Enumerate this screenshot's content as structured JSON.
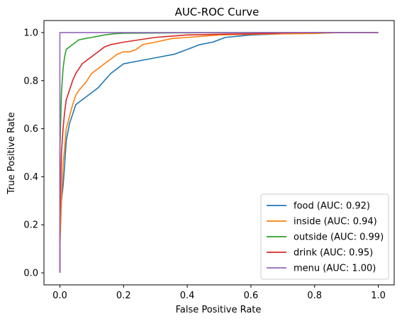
{
  "chart_data": {
    "type": "line",
    "title": "AUC-ROC Curve",
    "xlabel": "False Positive Rate",
    "ylabel": "True Positive Rate",
    "xlim": [
      -0.05,
      1.05
    ],
    "ylim": [
      -0.05,
      1.05
    ],
    "xticks": [
      0.0,
      0.2,
      0.4,
      0.6,
      0.8,
      1.0
    ],
    "yticks": [
      0.0,
      0.2,
      0.4,
      0.6,
      0.8,
      1.0
    ],
    "xtick_labels": [
      "0.0",
      "0.2",
      "0.4",
      "0.6",
      "0.8",
      "1.0"
    ],
    "ytick_labels": [
      "0.0",
      "0.2",
      "0.4",
      "0.6",
      "0.8",
      "1.0"
    ],
    "grid": false,
    "legend_position": "lower-right",
    "series": [
      {
        "name": "food (AUC: 0.92)",
        "color": "#1f77b4",
        "x": [
          0.0,
          0.0,
          0.005,
          0.01,
          0.015,
          0.02,
          0.03,
          0.04,
          0.05,
          0.06,
          0.07,
          0.08,
          0.1,
          0.12,
          0.14,
          0.16,
          0.18,
          0.2,
          0.24,
          0.28,
          0.32,
          0.36,
          0.4,
          0.44,
          0.48,
          0.52,
          0.56,
          0.6,
          0.7,
          0.8,
          0.9,
          1.0
        ],
        "y": [
          0.0,
          0.15,
          0.3,
          0.36,
          0.45,
          0.55,
          0.62,
          0.66,
          0.7,
          0.71,
          0.72,
          0.73,
          0.75,
          0.77,
          0.8,
          0.83,
          0.85,
          0.87,
          0.88,
          0.89,
          0.9,
          0.91,
          0.93,
          0.95,
          0.96,
          0.98,
          0.985,
          0.99,
          0.995,
          0.998,
          1.0,
          1.0
        ]
      },
      {
        "name": "inside (AUC: 0.94)",
        "color": "#ff7f0e",
        "x": [
          0.0,
          0.0,
          0.005,
          0.01,
          0.015,
          0.02,
          0.03,
          0.04,
          0.05,
          0.06,
          0.08,
          0.1,
          0.12,
          0.14,
          0.16,
          0.18,
          0.2,
          0.22,
          0.24,
          0.26,
          0.3,
          0.35,
          0.4,
          0.45,
          0.5,
          0.6,
          0.7,
          0.8,
          0.87,
          1.0
        ],
        "y": [
          0.0,
          0.1,
          0.3,
          0.45,
          0.52,
          0.6,
          0.65,
          0.7,
          0.74,
          0.76,
          0.79,
          0.83,
          0.85,
          0.87,
          0.89,
          0.91,
          0.92,
          0.92,
          0.93,
          0.95,
          0.96,
          0.975,
          0.98,
          0.985,
          0.99,
          0.993,
          0.995,
          0.996,
          1.0,
          1.0
        ]
      },
      {
        "name": "outside (AUC: 0.99)",
        "color": "#2ca02c",
        "x": [
          0.0,
          0.0,
          0.002,
          0.005,
          0.01,
          0.015,
          0.02,
          0.03,
          0.04,
          0.05,
          0.06,
          0.08,
          0.1,
          0.12,
          0.14,
          0.17,
          0.2,
          0.3,
          0.4,
          0.5,
          0.6,
          0.8,
          1.0
        ],
        "y": [
          0.0,
          0.5,
          0.6,
          0.75,
          0.85,
          0.9,
          0.93,
          0.94,
          0.95,
          0.96,
          0.97,
          0.975,
          0.98,
          0.985,
          0.99,
          0.995,
          0.997,
          0.998,
          0.999,
          1.0,
          1.0,
          1.0,
          1.0
        ]
      },
      {
        "name": "drink (AUC: 0.95)",
        "color": "#d62728",
        "x": [
          0.0,
          0.0,
          0.005,
          0.01,
          0.015,
          0.02,
          0.03,
          0.04,
          0.05,
          0.06,
          0.07,
          0.08,
          0.1,
          0.12,
          0.14,
          0.16,
          0.2,
          0.25,
          0.3,
          0.35,
          0.4,
          0.5,
          0.6,
          0.7,
          0.8,
          1.0
        ],
        "y": [
          0.0,
          0.2,
          0.5,
          0.6,
          0.67,
          0.72,
          0.76,
          0.8,
          0.83,
          0.85,
          0.87,
          0.88,
          0.9,
          0.92,
          0.94,
          0.95,
          0.96,
          0.97,
          0.98,
          0.985,
          0.99,
          0.993,
          0.995,
          0.998,
          1.0,
          1.0
        ]
      },
      {
        "name": "menu (AUC: 1.00)",
        "color": "#9467bd",
        "x": [
          0.0,
          0.0,
          0.01,
          0.1,
          1.0
        ],
        "y": [
          0.0,
          1.0,
          1.0,
          1.0,
          1.0
        ]
      }
    ]
  }
}
